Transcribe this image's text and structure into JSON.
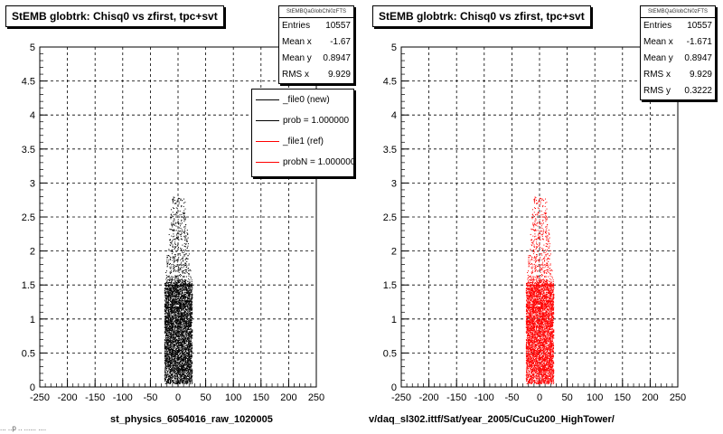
{
  "left_pad": {
    "title": "StEMB globtrk: Chisq0 vs zfirst, tpc+svt",
    "stats": {
      "name": "StEMBQaGlobChi0zFTS",
      "rows": [
        {
          "label": "Entries",
          "value": "10557"
        },
        {
          "label": "Mean x",
          "value": "-1.67"
        },
        {
          "label": "Mean y",
          "value": "0.8947"
        },
        {
          "label": "RMS x",
          "value": "9.929"
        }
      ]
    },
    "legend": [
      {
        "label": "_file0 (new)",
        "color": "#000000"
      },
      {
        "label": "prob = 1.000000",
        "color": "#000000"
      },
      {
        "label": "_file1 (ref)",
        "color": "#ff0000"
      },
      {
        "label": "probN = 1.000000",
        "color": "#ff0000"
      }
    ],
    "xname": "st_physics_6054016_raw_1020005"
  },
  "right_pad": {
    "title": "StEMB globtrk: Chisq0 vs zfirst, tpc+svt",
    "stats": {
      "name": "StEMBQaGlobChi0zFTS",
      "rows": [
        {
          "label": "Entries",
          "value": "10557"
        },
        {
          "label": "Mean x",
          "value": "-1.671"
        },
        {
          "label": "Mean y",
          "value": "0.8947"
        },
        {
          "label": "RMS x",
          "value": "9.929"
        },
        {
          "label": "RMS y",
          "value": "0.3222"
        }
      ]
    },
    "xname": "v/daq_sl302.ittf/Sat/year_2005/CuCu200_HighTower/"
  },
  "footer": "... ..p .. ...... ....",
  "chart_data": [
    {
      "type": "scatter",
      "title": "StEMB globtrk: Chisq0 vs zfirst, tpc+svt",
      "xlabel": "st_physics_6054016_raw_1020005",
      "ylabel": "",
      "xlim": [
        -250,
        250
      ],
      "ylim": [
        0,
        5
      ],
      "xticks": [
        "-250",
        "-200",
        "-150",
        "-100",
        "-50",
        "0",
        "50",
        "100",
        "150",
        "200",
        "250"
      ],
      "yticks": [
        "0",
        "0.5",
        "1",
        "1.5",
        "2",
        "2.5",
        "3",
        "3.5",
        "4",
        "4.5",
        "5"
      ],
      "grid": true,
      "color": "#000000",
      "series": [
        {
          "x_range": [
            -25,
            25
          ],
          "y_range": [
            0.05,
            2.8
          ],
          "dense_y_range": [
            0.25,
            1.5
          ],
          "entries": 10557,
          "mean_x": -1.67,
          "mean_y": 0.8947,
          "rms_x": 9.929
        }
      ]
    },
    {
      "type": "scatter",
      "title": "StEMB globtrk: Chisq0 vs zfirst, tpc+svt",
      "xlabel": "v/daq_sl302.ittf/Sat/year_2005/CuCu200_HighTower/",
      "ylabel": "",
      "xlim": [
        -250,
        250
      ],
      "ylim": [
        0,
        5
      ],
      "xticks": [
        "-250",
        "-200",
        "-150",
        "-100",
        "-50",
        "0",
        "50",
        "100",
        "150",
        "200",
        "250"
      ],
      "yticks": [
        "0",
        "0.5",
        "1",
        "1.5",
        "2",
        "2.5",
        "3",
        "3.5",
        "4",
        "4.5",
        "5"
      ],
      "grid": true,
      "color": "#ff0000",
      "series": [
        {
          "x_range": [
            -25,
            25
          ],
          "y_range": [
            0.05,
            2.8
          ],
          "dense_y_range": [
            0.25,
            1.5
          ],
          "entries": 10557,
          "mean_x": -1.671,
          "mean_y": 0.8947,
          "rms_x": 9.929,
          "rms_y": 0.3222
        }
      ]
    }
  ]
}
